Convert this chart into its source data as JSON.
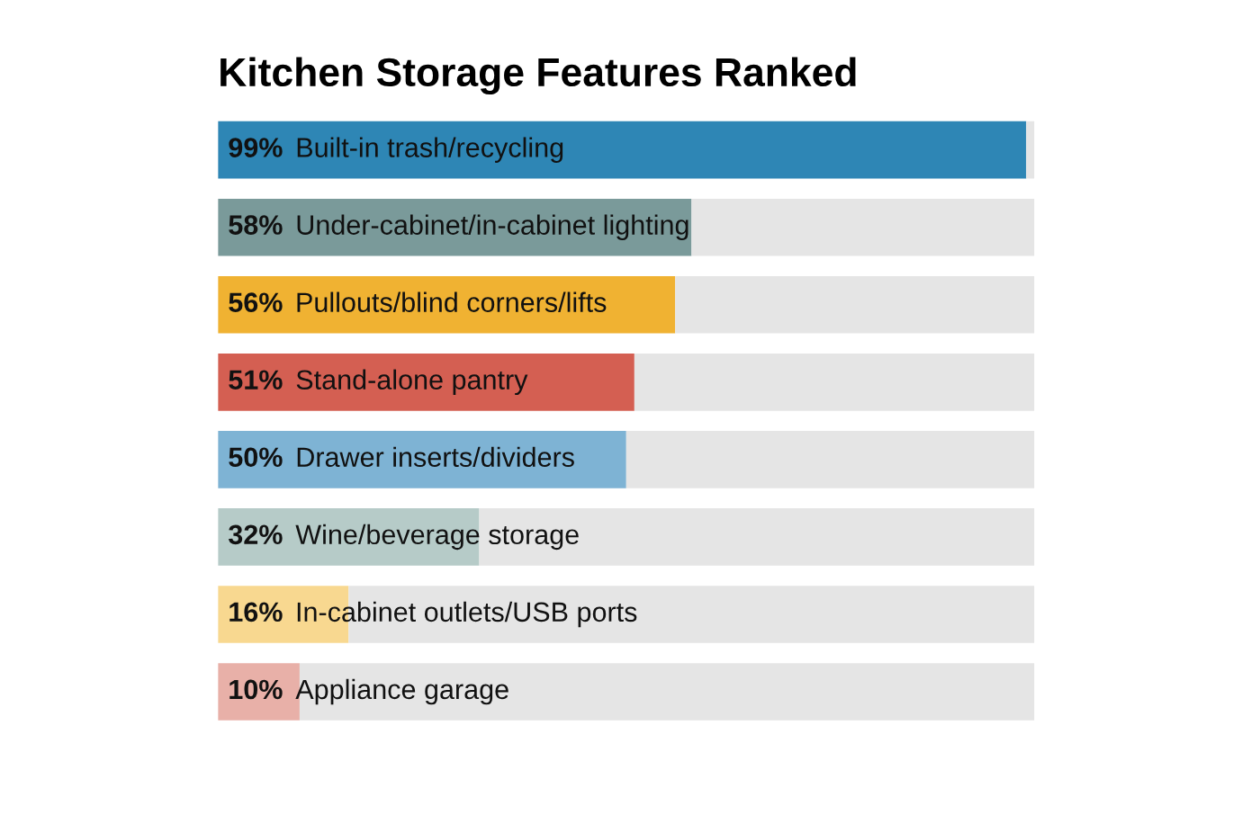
{
  "chart_data": {
    "type": "bar",
    "orientation": "horizontal",
    "stacked": true,
    "title": "Kitchen Storage Features Ranked",
    "categories": [
      "Built-in trash/recycling",
      "Under-cabinet/in-cabinet lighting",
      "Pullouts/blind corners/lifts",
      "Stand-alone pantry",
      "Drawer inserts/dividers",
      "Wine/beverage storage",
      "In-cabinet outlets/USB ports",
      "Appliance garage"
    ],
    "series": [
      {
        "values": [
          99,
          58,
          56,
          51,
          50,
          32,
          16,
          10
        ],
        "colors": [
          "#2e86b5",
          "#7a9a9a",
          "#f0b232",
          "#d45f52",
          "#7eb3d4",
          "#b6cbc8",
          "#f8d890",
          "#e8b0a8"
        ],
        "value_labels": [
          "99%",
          "58%",
          "56%",
          "51%",
          "50%",
          "32%",
          "16%",
          "10%"
        ]
      },
      {
        "values": [
          1,
          42,
          44,
          49,
          50,
          68,
          84,
          90
        ],
        "color": "#e5e5e5"
      }
    ]
  }
}
